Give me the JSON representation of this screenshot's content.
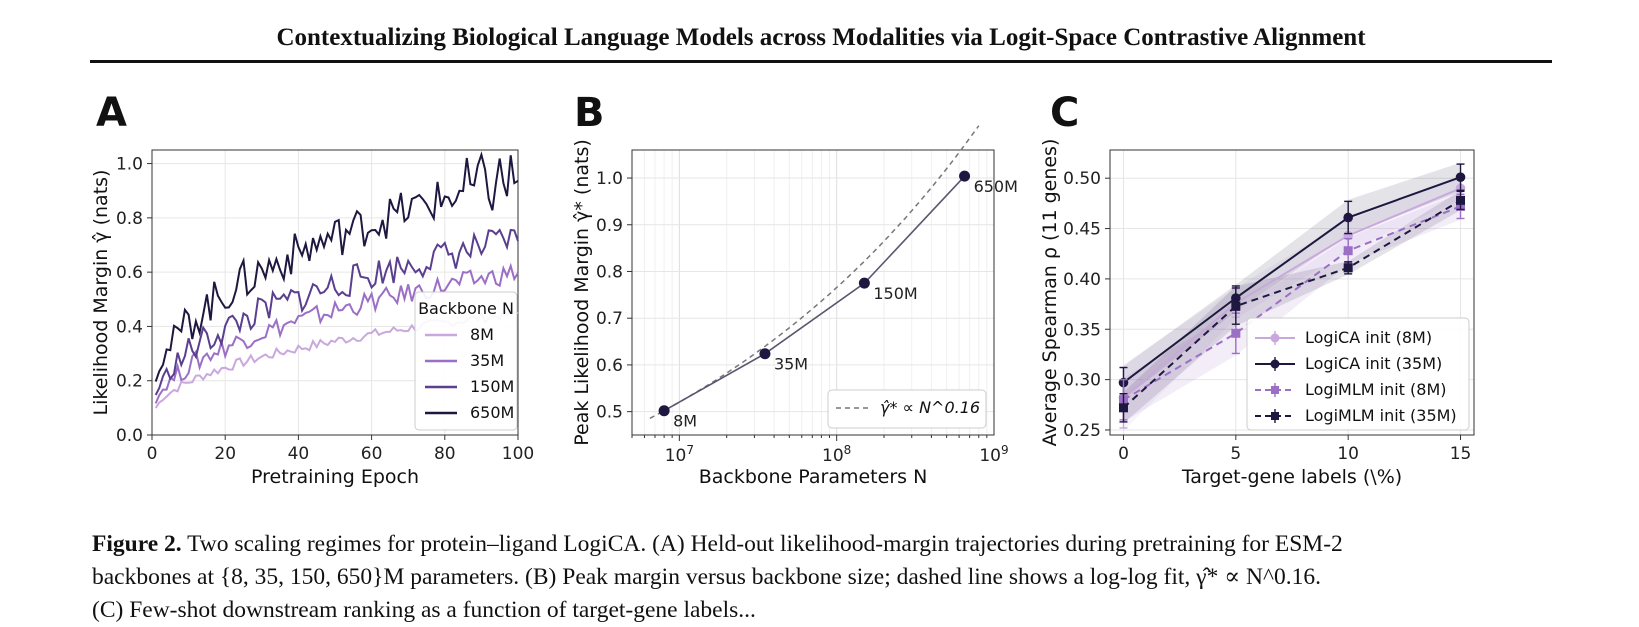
{
  "header": {
    "title": "Contextualizing Biological Language Models across Modalities via Logit-Space Contrastive Alignment"
  },
  "caption": {
    "label": "Figure 2.",
    "line1": "Two scaling regimes for protein–ligand LogiCA. (A) Held-out likelihood-margin trajectories during pretraining for ESM-2",
    "line2": "backbones at {8, 35, 150, 650}M parameters. (B) Peak margin versus backbone size; dashed line shows a log-log fit, γ̂* ∝ N^0.16.",
    "line3": "(C) Few-shot downstream ranking as a function of target-gene labels..."
  },
  "colors": {
    "c8M": "#c9a8dd",
    "c35M": "#9b6fc6",
    "c150M": "#5a3f8f",
    "c650M": "#1e1840",
    "mlm8M": "#9b6fc6",
    "mlm35M": "#1e1840"
  },
  "chart_data": [
    {
      "panel": "A",
      "type": "line",
      "xlabel": "Pretraining Epoch",
      "ylabel": "Likelihood Margin γ̂ (nats)",
      "xlim": [
        0,
        100
      ],
      "ylim": [
        0,
        1.05
      ],
      "xticks": [
        0,
        20,
        40,
        60,
        80,
        100
      ],
      "yticks": [
        "0.0",
        "0.2",
        "0.4",
        "0.6",
        "0.8",
        "1.0"
      ],
      "legend_title": "Backbone N",
      "legend_position": "lower-right",
      "grid": true,
      "series": [
        {
          "name": "8M",
          "color_key": "c8M",
          "y_start": 0.04,
          "y_end": 0.45
        },
        {
          "name": "35M",
          "color_key": "c35M",
          "y_start": 0.04,
          "y_end": 0.6
        },
        {
          "name": "150M",
          "color_key": "c150M",
          "y_start": 0.05,
          "y_end": 0.72
        },
        {
          "name": "650M",
          "color_key": "c650M",
          "y_start": 0.08,
          "y_end": 0.95
        }
      ]
    },
    {
      "panel": "B",
      "type": "scatter",
      "xlabel": "Backbone Parameters N",
      "ylabel": "Peak Likelihood Margin γ̂* (nats)",
      "xscale": "log",
      "xlim": [
        5000000.0,
        1000000000.0
      ],
      "ylim": [
        0.45,
        1.06
      ],
      "xticks": [
        "10^7",
        "10^8",
        "10^9"
      ],
      "yticks": [
        "0.5",
        "0.6",
        "0.7",
        "0.8",
        "0.9",
        "1.0"
      ],
      "grid": true,
      "points": [
        {
          "x": 8000000.0,
          "y": 0.502,
          "label": "8M"
        },
        {
          "x": 35000000.0,
          "y": 0.624,
          "label": "35M"
        },
        {
          "x": 150000000.0,
          "y": 0.775,
          "label": "150M"
        },
        {
          "x": 650000000.0,
          "y": 1.004,
          "label": "650M"
        }
      ],
      "fit_legend": "γ̂* ∝ N^0.16",
      "legend_position": "lower-right"
    },
    {
      "panel": "C",
      "type": "line",
      "xlabel": "Target-gene labels (\\%)",
      "ylabel": "Average Spearman ρ (11 genes)",
      "xlim": [
        -0.6,
        15.6
      ],
      "ylim": [
        0.245,
        0.528
      ],
      "xticks": [
        0,
        5,
        10,
        15
      ],
      "yticks": [
        "0.25",
        "0.30",
        "0.35",
        "0.40",
        "0.45",
        "0.50"
      ],
      "grid": true,
      "legend_position": "lower-right",
      "x": [
        0,
        5,
        10,
        15
      ],
      "series": [
        {
          "name": "LogiCA init (8M)",
          "color_key": "c8M",
          "dashed": false,
          "marker": "circle",
          "values": [
            0.282,
            0.376,
            0.443,
            0.49
          ],
          "err": [
            0.03,
            0.014,
            0.014,
            0.01
          ]
        },
        {
          "name": "LogiCA init (35M)",
          "color_key": "c650M",
          "dashed": false,
          "marker": "circle",
          "values": [
            0.297,
            0.381,
            0.461,
            0.501
          ],
          "err": [
            0.015,
            0.012,
            0.016,
            0.013
          ]
        },
        {
          "name": "LogiMLM init (8M)",
          "color_key": "mlm8M",
          "dashed": true,
          "marker": "square",
          "values": [
            0.28,
            0.346,
            0.428,
            0.472
          ],
          "err": [
            0.02,
            0.02,
            0.012,
            0.012
          ]
        },
        {
          "name": "LogiMLM init (35M)",
          "color_key": "mlm35M",
          "dashed": true,
          "marker": "square",
          "values": [
            0.272,
            0.373,
            0.411,
            0.478
          ],
          "err": [
            0.014,
            0.018,
            0.006,
            0.009
          ]
        }
      ]
    }
  ]
}
